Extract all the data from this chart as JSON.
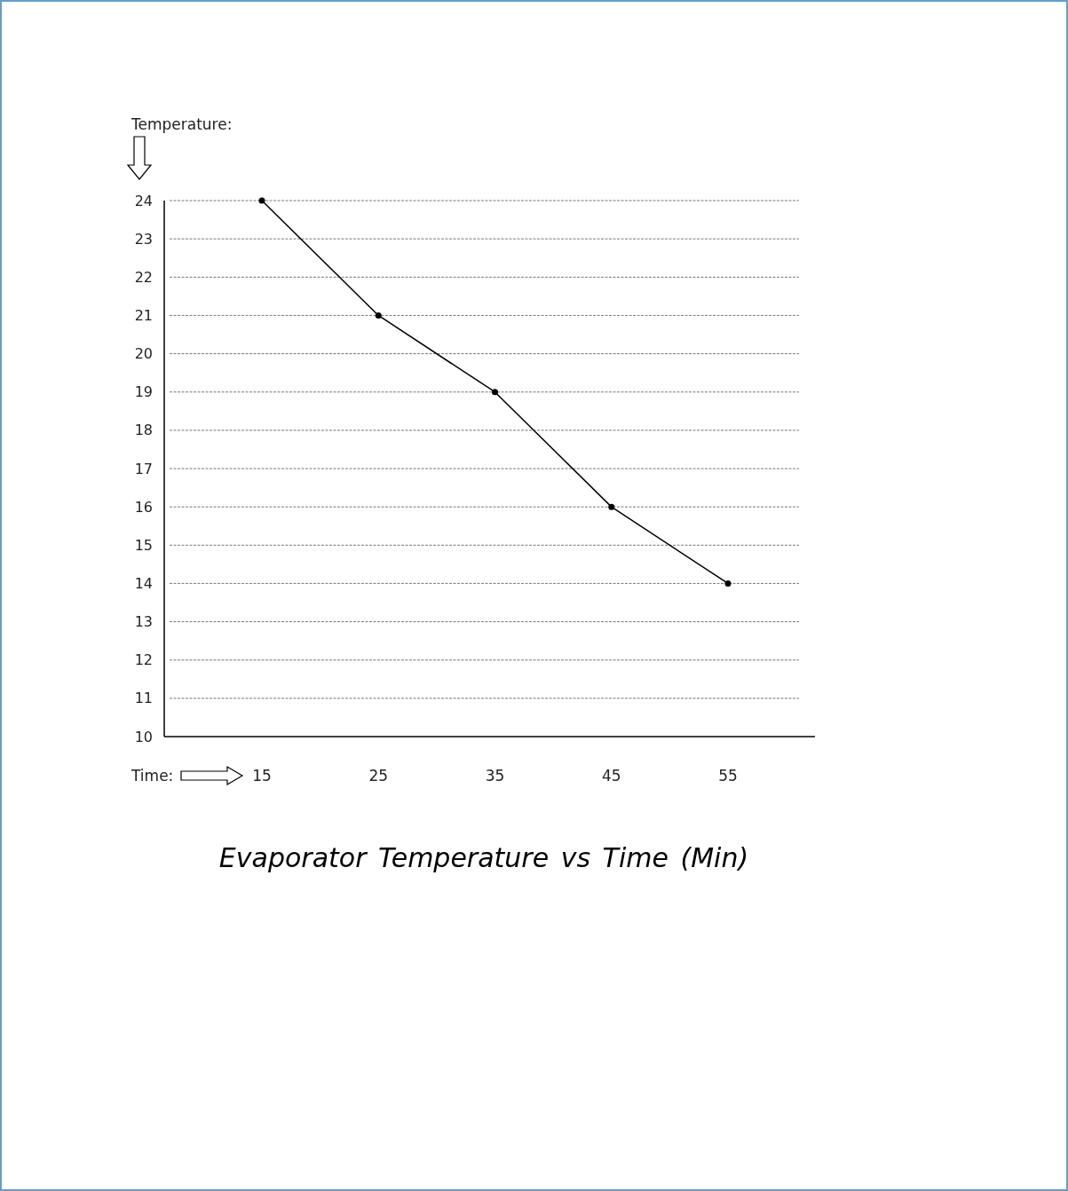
{
  "chart_data": {
    "type": "line",
    "title": "Evaporator Temperature vs Time (Min)",
    "xlabel": "Time:",
    "ylabel": "Temperature:",
    "categories": [
      "15",
      "25",
      "35",
      "45",
      "55"
    ],
    "series": [
      {
        "color": "#000000",
        "values": [
          24,
          21,
          19,
          16,
          14
        ]
      }
    ],
    "ylim": [
      10,
      24
    ],
    "yticks": [
      10,
      11,
      12,
      13,
      14,
      15,
      16,
      17,
      18,
      19,
      20,
      21,
      22,
      23,
      24
    ],
    "grid": "y",
    "marker": "circle",
    "line_style": "solid"
  }
}
